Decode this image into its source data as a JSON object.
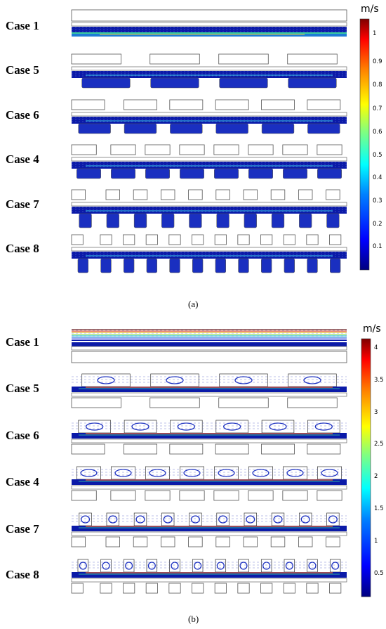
{
  "figure": {
    "panels": [
      {
        "caption": "(a)",
        "unit": "m/s",
        "colorbar_ticks": [
          "1",
          "0.9",
          "0.8",
          "0.7",
          "0.6",
          "0.5",
          "0.4",
          "0.3",
          "0.2",
          "0.1"
        ],
        "cases": [
          "Case 1",
          "Case 5",
          "Case 6",
          "Case 4",
          "Case 7",
          "Case 8"
        ]
      },
      {
        "caption": "(b)",
        "unit": "m/s",
        "colorbar_ticks": [
          "4",
          "3.5",
          "3",
          "2.5",
          "2",
          "1.5",
          "1",
          "0.5"
        ],
        "cases": [
          "Case 1",
          "Case 5",
          "Case 6",
          "Case 4",
          "Case 7",
          "Case 8"
        ]
      }
    ]
  },
  "colors": {
    "colormap": [
      "#00007f",
      "#0000ff",
      "#0080ff",
      "#00ffff",
      "#80ff80",
      "#ffff00",
      "#ff8000",
      "#ff0000",
      "#7f0000"
    ],
    "wall": "#444444",
    "streamline_dark": "#0b1170"
  }
}
